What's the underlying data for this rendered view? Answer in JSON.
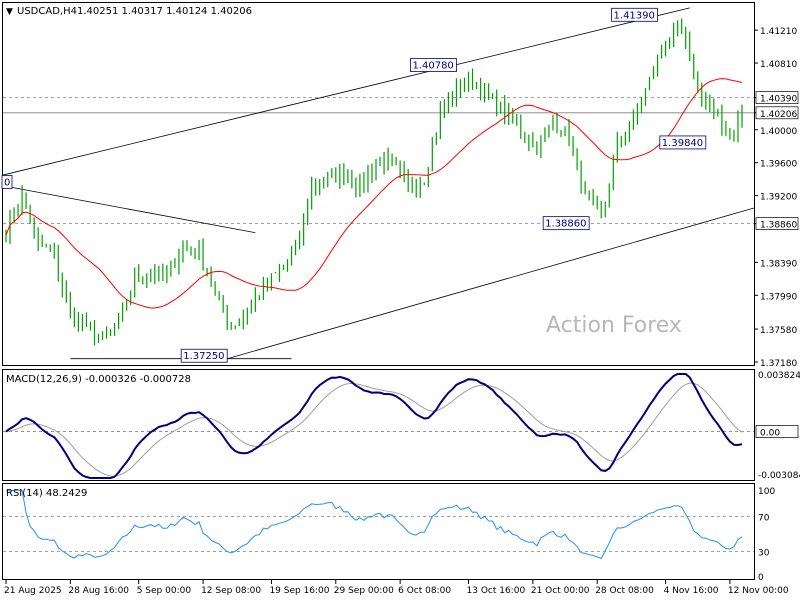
{
  "header": {
    "symbol": "USDCAD,H4",
    "ohlc": "1.40251 1.40317 1.40124 1.40206"
  },
  "watermark": "Action Forex",
  "colors": {
    "candle": "#00a000",
    "ma": "#ff0000",
    "macd_line": "#000080",
    "signal_line": "#9e9e9e",
    "rsi_line": "#1e90ff",
    "trend": "#000000",
    "grid_dash": "#808080"
  },
  "chart_data": [
    {
      "type": "line",
      "title": "",
      "price_axis": {
        "min": 1.3718,
        "max": 1.4143,
        "ticks": [
          "1.41210",
          "1.40810",
          "1.40390",
          "1.40206",
          "1.40000",
          "1.39600",
          "1.39200",
          "1.38860",
          "1.38390",
          "1.37990",
          "1.37580",
          "1.37180"
        ],
        "highlight_labels": [
          "1.40390",
          "1.40206",
          "1.38860"
        ]
      },
      "time_axis": {
        "labels": [
          "21 Aug 2025",
          "28 Aug 16:00",
          "5 Sep 00:00",
          "12 Sep 08:00",
          "19 Sep 16:00",
          "29 Sep 00:00",
          "6 Oct 08:00",
          "13 Oct 16:00",
          "21 Oct 00:00",
          "28 Oct 08:00",
          "4 Nov 16:00",
          "12 Nov 00:00"
        ]
      },
      "annotations": [
        {
          "label": "1.41390",
          "i": 162,
          "value": 1.4139
        },
        {
          "label": "1.40780",
          "i": 112,
          "value": 1.4078
        },
        {
          "label": "1.39840",
          "i": 174,
          "value": 1.3984
        },
        {
          "label": "1.38860",
          "i": 145,
          "value": 1.3886
        },
        {
          "label": "1.37250",
          "i": 55,
          "value": 1.3725
        },
        {
          "label": "0",
          "i": 0,
          "value": 1.3936
        }
      ],
      "levels": [
        1.4039,
        1.40206,
        1.3886
      ],
      "anchors": {
        "index": [
          0,
          4,
          8,
          12,
          16,
          20,
          24,
          28,
          32,
          36,
          40,
          44,
          48,
          52,
          56,
          60,
          64,
          68,
          72,
          76,
          80,
          84,
          88,
          92,
          96,
          100,
          104,
          108,
          112,
          116,
          120,
          124,
          128,
          132,
          136,
          140,
          144,
          148,
          152,
          156,
          160,
          164,
          168,
          172,
          176,
          180,
          183
        ],
        "close": [
          1.388,
          1.392,
          1.386,
          1.385,
          1.377,
          1.376,
          1.374,
          1.377,
          1.382,
          1.383,
          1.382,
          1.386,
          1.385,
          1.38,
          1.376,
          1.378,
          1.381,
          1.383,
          1.385,
          1.393,
          1.394,
          1.395,
          1.393,
          1.396,
          1.396,
          1.393,
          1.394,
          1.402,
          1.405,
          1.406,
          1.404,
          1.402,
          1.4,
          1.398,
          1.401,
          1.399,
          1.392,
          1.389,
          1.398,
          1.401,
          1.406,
          1.411,
          1.412,
          1.405,
          1.402,
          1.399,
          1.4021
        ]
      },
      "ma_period": 24,
      "series": []
    },
    {
      "type": "line",
      "title": "MACD(12,26,9) -0.000326 -0.000728",
      "axis": {
        "max": 0.003824,
        "min": -0.003084,
        "ticks": [
          "0.003824",
          "0.00",
          "-0.003084"
        ],
        "marker": "0.00"
      },
      "series": []
    },
    {
      "type": "line",
      "title": "RSI(14) 48.2429",
      "axis": {
        "max": 100,
        "min": 0,
        "ticks": [
          "100",
          "70",
          "30",
          "0"
        ]
      },
      "series": []
    }
  ]
}
